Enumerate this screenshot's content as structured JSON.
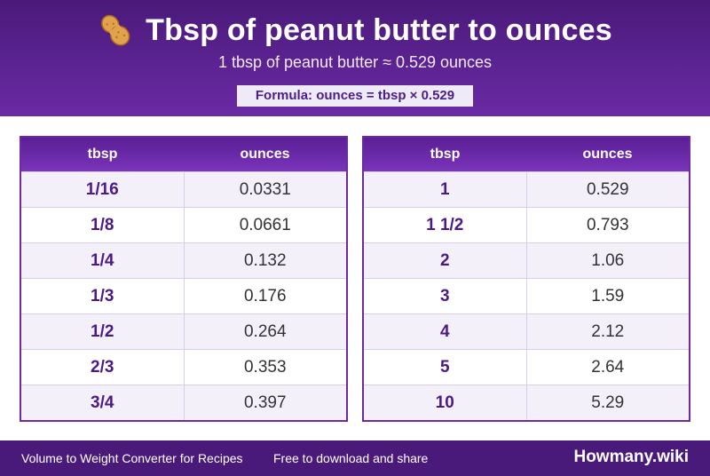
{
  "header": {
    "title": "Tbsp of peanut butter to ounces",
    "subtitle": "1 tbsp of peanut butter ≈ 0.529 ounces",
    "formula": "Formula: ounces = tbsp × 0.529",
    "icon": "peanut-icon"
  },
  "tables": {
    "left": {
      "headers": [
        "tbsp",
        "ounces"
      ],
      "rows": [
        {
          "tbsp": "1/16",
          "ounces": "0.0331"
        },
        {
          "tbsp": "1/8",
          "ounces": "0.0661"
        },
        {
          "tbsp": "1/4",
          "ounces": "0.132"
        },
        {
          "tbsp": "1/3",
          "ounces": "0.176"
        },
        {
          "tbsp": "1/2",
          "ounces": "0.264"
        },
        {
          "tbsp": "2/3",
          "ounces": "0.353"
        },
        {
          "tbsp": "3/4",
          "ounces": "0.397"
        }
      ]
    },
    "right": {
      "headers": [
        "tbsp",
        "ounces"
      ],
      "rows": [
        {
          "tbsp": "1",
          "ounces": "0.529"
        },
        {
          "tbsp": "1 1/2",
          "ounces": "0.793"
        },
        {
          "tbsp": "2",
          "ounces": "1.06"
        },
        {
          "tbsp": "3",
          "ounces": "1.59"
        },
        {
          "tbsp": "4",
          "ounces": "2.12"
        },
        {
          "tbsp": "5",
          "ounces": "2.64"
        },
        {
          "tbsp": "10",
          "ounces": "5.29"
        }
      ]
    }
  },
  "footer": {
    "left_text": "Volume to Weight Converter for Recipes",
    "mid_text": "Free to download and share",
    "brand": "Howmany.wiki"
  },
  "colors": {
    "brand_purple": "#4a1a7a",
    "accent_purple": "#6a2aa4"
  }
}
